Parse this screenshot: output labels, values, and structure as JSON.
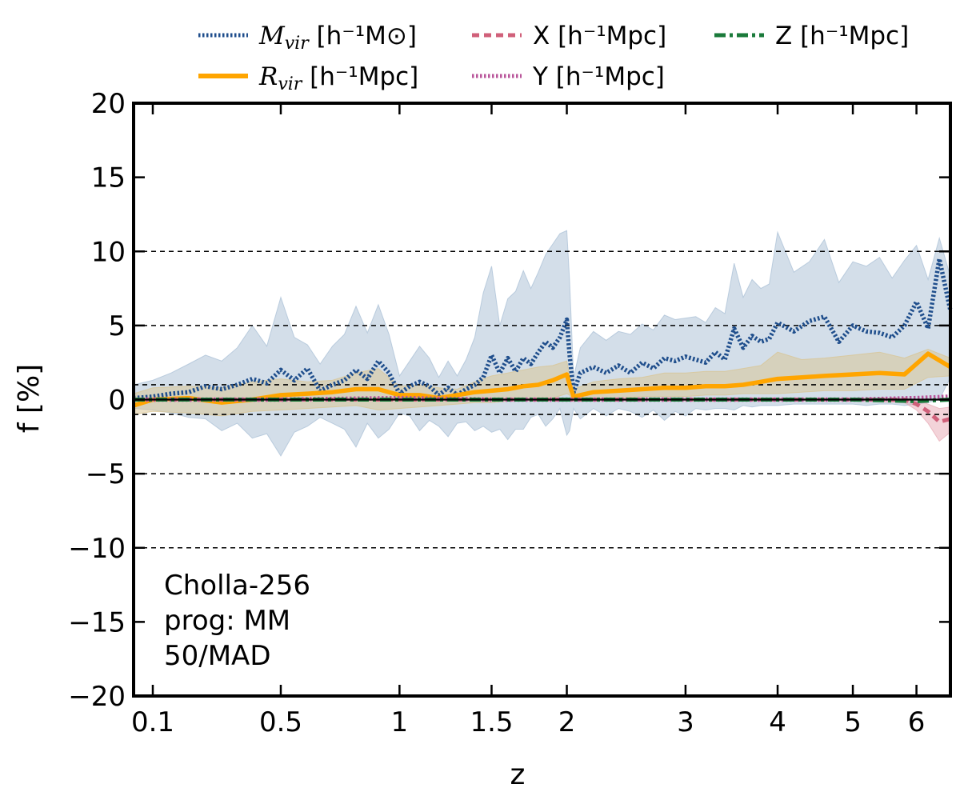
{
  "chart_data": {
    "type": "line",
    "xlabel": "z",
    "ylabel": "f [%]",
    "ylim": [
      -20,
      20
    ],
    "y_ticks": [
      -20,
      -15,
      -10,
      -5,
      0,
      5,
      10,
      15,
      20
    ],
    "y_tick_labels": [
      "−20",
      "−15",
      "−10",
      "−5",
      "0",
      "5",
      "10",
      "15",
      "20"
    ],
    "x_ticks": [
      0.1,
      0.5,
      1,
      1.5,
      2,
      3,
      4,
      5,
      6
    ],
    "x_tick_labels": [
      "0.1",
      "0.5",
      "1",
      "1.5",
      "2",
      "3",
      "4",
      "5",
      "6"
    ],
    "x_scale": "log(1+z)",
    "xlim": [
      0.05,
      6.6
    ],
    "grid": "dashed horizontal lines at y = -10, -5, 5, 10 and y = -1, 1",
    "reference_lines": [
      -10,
      -5,
      -1,
      1,
      5,
      10
    ],
    "legend_position": "top, above plot",
    "annotation": [
      "Cholla-256",
      "prog: MM",
      "50/MAD"
    ],
    "legend": [
      {
        "key": "mvir",
        "math": "M",
        "sub": "vir",
        "units": "[h⁻¹M⊙]",
        "color": "#1f4e8c",
        "style": "dotted"
      },
      {
        "key": "rvir",
        "math": "R",
        "sub": "vir",
        "units": "[h⁻¹Mpc]",
        "color": "#ffa500",
        "style": "solid"
      },
      {
        "key": "x",
        "label": "X",
        "units": "[h⁻¹Mpc]",
        "color": "#d0607a",
        "style": "dashed"
      },
      {
        "key": "y",
        "label": "Y",
        "units": "[h⁻¹Mpc]",
        "color": "#b8559a",
        "style": "dotted"
      },
      {
        "key": "z",
        "label": "Z",
        "units": "[h⁻¹Mpc]",
        "color": "#1a7a3a",
        "style": "dashdot"
      }
    ],
    "series": [
      {
        "name": "M_vir [h^-1 M_sun]",
        "color": "#1f4e8c",
        "style": "dotted",
        "band_color": "#a7bdd4",
        "x": [
          0.05,
          0.1,
          0.15,
          0.2,
          0.25,
          0.3,
          0.35,
          0.4,
          0.45,
          0.5,
          0.55,
          0.6,
          0.65,
          0.7,
          0.75,
          0.8,
          0.85,
          0.9,
          0.95,
          1.0,
          1.05,
          1.1,
          1.15,
          1.2,
          1.25,
          1.3,
          1.35,
          1.4,
          1.45,
          1.5,
          1.55,
          1.6,
          1.65,
          1.7,
          1.75,
          1.8,
          1.85,
          1.9,
          1.95,
          2.0,
          2.02,
          2.05,
          2.1,
          2.2,
          2.3,
          2.4,
          2.5,
          2.6,
          2.7,
          2.8,
          2.9,
          3.0,
          3.1,
          3.2,
          3.3,
          3.4,
          3.5,
          3.6,
          3.7,
          3.8,
          3.9,
          4.0,
          4.2,
          4.4,
          4.6,
          4.8,
          5.0,
          5.2,
          5.4,
          5.6,
          5.8,
          6.0,
          6.2,
          6.4,
          6.6
        ],
        "y": [
          0.1,
          0.2,
          0.4,
          0.5,
          0.9,
          0.7,
          1.0,
          1.4,
          1.1,
          2.0,
          1.3,
          2.1,
          0.6,
          1.0,
          1.3,
          2.0,
          1.4,
          2.6,
          1.8,
          0.4,
          0.9,
          1.2,
          0.9,
          0.3,
          0.8,
          0.3,
          0.7,
          1.0,
          1.5,
          3.0,
          1.8,
          2.8,
          1.9,
          2.8,
          2.4,
          3.2,
          3.9,
          3.5,
          4.2,
          5.4,
          3.0,
          0.5,
          1.8,
          2.2,
          1.8,
          2.3,
          1.8,
          2.5,
          2.1,
          2.8,
          2.6,
          2.9,
          2.7,
          2.5,
          3.2,
          2.7,
          4.8,
          3.5,
          4.3,
          3.9,
          4.1,
          5.2,
          4.6,
          5.3,
          5.6,
          3.9,
          5.0,
          4.6,
          4.5,
          4.2,
          5.0,
          6.6,
          4.8,
          9.5,
          6.0
        ],
        "upper": [
          1.0,
          1.3,
          1.8,
          2.4,
          3.0,
          2.6,
          3.5,
          5.0,
          3.6,
          6.9,
          4.2,
          3.7,
          2.4,
          3.6,
          4.4,
          6.3,
          4.5,
          6.4,
          4.4,
          1.6,
          2.6,
          3.6,
          2.8,
          1.5,
          2.6,
          1.6,
          2.7,
          4.2,
          7.2,
          9.0,
          5.0,
          6.8,
          7.3,
          8.7,
          7.5,
          8.6,
          9.8,
          10.5,
          11.2,
          11.4,
          8.0,
          1.5,
          3.5,
          4.6,
          4.0,
          4.6,
          4.4,
          5.1,
          4.7,
          5.7,
          5.4,
          5.5,
          5.6,
          5.2,
          6.2,
          5.8,
          9.2,
          6.9,
          8.1,
          7.5,
          7.8,
          11.3,
          8.6,
          9.3,
          10.8,
          7.9,
          9.3,
          9.0,
          9.6,
          8.2,
          9.4,
          10.4,
          8.1,
          10.9,
          8.3
        ],
        "lower": [
          -0.6,
          -0.7,
          -0.9,
          -1.2,
          -1.3,
          -2.1,
          -1.6,
          -2.6,
          -2.3,
          -3.8,
          -2.2,
          -1.8,
          -1.2,
          -1.6,
          -2.0,
          -3.2,
          -1.6,
          -2.6,
          -2.0,
          -0.9,
          -1.1,
          -2.1,
          -1.4,
          -1.8,
          -2.5,
          -1.6,
          -1.5,
          -2.1,
          -1.8,
          -2.2,
          -2.0,
          -2.7,
          -2.0,
          -2.0,
          -1.2,
          -1.0,
          -1.8,
          -1.3,
          -0.6,
          -2.4,
          -2.1,
          -0.6,
          -1.3,
          -0.6,
          -1.1,
          -0.6,
          -0.8,
          -1.2,
          -0.7,
          -1.4,
          -0.8,
          -1.1,
          -0.6,
          -0.7,
          -0.6,
          -0.6,
          -0.7,
          -0.4,
          -0.5,
          -0.4,
          -0.4,
          -0.4,
          -0.3,
          -0.3,
          -0.3,
          -0.3,
          -0.3,
          -0.4,
          -0.3,
          -0.3,
          -0.4,
          -0.3,
          -0.2,
          0.0,
          1.5
        ]
      },
      {
        "name": "R_vir [h^-1 Mpc]",
        "color": "#ffa500",
        "style": "solid",
        "band_color": "#d9c38f",
        "x": [
          0.05,
          0.1,
          0.2,
          0.3,
          0.4,
          0.5,
          0.6,
          0.7,
          0.8,
          0.9,
          1.0,
          1.1,
          1.2,
          1.3,
          1.4,
          1.5,
          1.6,
          1.7,
          1.8,
          1.9,
          2.0,
          2.02,
          2.05,
          2.2,
          2.4,
          2.6,
          2.8,
          3.0,
          3.2,
          3.4,
          3.6,
          3.8,
          4.0,
          4.3,
          4.6,
          5.0,
          5.4,
          5.8,
          6.2,
          6.6
        ],
        "y": [
          -0.4,
          0.0,
          0.1,
          -0.2,
          0.0,
          0.3,
          0.4,
          0.5,
          0.7,
          0.7,
          0.3,
          0.3,
          0.1,
          0.3,
          0.5,
          0.6,
          0.7,
          0.9,
          1.0,
          1.3,
          1.7,
          1.0,
          0.2,
          0.5,
          0.6,
          0.7,
          0.8,
          0.8,
          0.9,
          0.9,
          1.0,
          1.2,
          1.4,
          1.5,
          1.6,
          1.7,
          1.8,
          1.7,
          3.1,
          2.2
        ],
        "upper": [
          0.4,
          0.8,
          0.9,
          0.8,
          1.2,
          1.4,
          1.2,
          1.3,
          1.8,
          2.1,
          0.9,
          1.0,
          0.8,
          0.7,
          1.2,
          1.6,
          1.8,
          2.0,
          2.2,
          2.3,
          2.6,
          1.6,
          0.7,
          1.2,
          1.4,
          1.5,
          1.8,
          1.8,
          1.9,
          1.9,
          2.1,
          2.3,
          3.2,
          2.7,
          2.8,
          3.0,
          3.2,
          2.8,
          3.4,
          2.8
        ],
        "lower": [
          -1.0,
          -0.8,
          -0.9,
          -1.1,
          -0.8,
          -0.7,
          -0.6,
          -0.5,
          -0.4,
          -0.7,
          -0.6,
          -0.5,
          -0.4,
          -0.3,
          -0.2,
          -0.2,
          -0.1,
          0.0,
          0.0,
          0.1,
          0.4,
          0.3,
          -0.1,
          0.1,
          0.1,
          0.2,
          0.2,
          0.2,
          0.3,
          0.3,
          0.4,
          0.4,
          0.4,
          0.5,
          0.6,
          0.6,
          0.7,
          0.7,
          1.5,
          1.6
        ]
      },
      {
        "name": "X [h^-1 Mpc]",
        "color": "#d0607a",
        "style": "dashed",
        "band_color": "#e7a8b4",
        "x": [
          0.05,
          0.5,
          1.0,
          1.5,
          2.0,
          2.5,
          3.0,
          4.0,
          5.0,
          5.8,
          6.0,
          6.2,
          6.4,
          6.6
        ],
        "y": [
          0.0,
          0.0,
          0.0,
          0.0,
          0.0,
          0.0,
          0.0,
          0.0,
          0.0,
          0.0,
          -0.3,
          -0.8,
          -1.5,
          -1.3
        ],
        "upper": [
          0.1,
          0.1,
          0.1,
          0.1,
          0.1,
          0.1,
          0.1,
          0.1,
          0.1,
          0.1,
          0.0,
          -0.3,
          -0.6,
          -0.5
        ],
        "lower": [
          -0.1,
          -0.1,
          -0.1,
          -0.1,
          -0.1,
          -0.1,
          -0.1,
          -0.1,
          -0.1,
          -0.2,
          -0.7,
          -1.6,
          -2.8,
          -2.2
        ]
      },
      {
        "name": "Y [h^-1 Mpc]",
        "color": "#b8559a",
        "style": "dotted",
        "x": [
          0.05,
          0.5,
          1.0,
          1.5,
          2.0,
          2.5,
          3.0,
          4.0,
          5.0,
          6.0,
          6.6
        ],
        "y": [
          0.0,
          0.0,
          0.1,
          0.0,
          0.0,
          0.0,
          0.0,
          0.0,
          0.0,
          0.1,
          0.2
        ]
      },
      {
        "name": "Z [h^-1 Mpc]",
        "color": "#1a7a3a",
        "style": "dashdot",
        "x": [
          0.05,
          0.5,
          1.0,
          1.5,
          2.0,
          2.5,
          3.0,
          4.0,
          5.0,
          6.0,
          6.6
        ],
        "y": [
          0.0,
          0.0,
          0.0,
          0.0,
          0.0,
          0.0,
          0.0,
          0.0,
          0.0,
          -0.1,
          0.0
        ]
      }
    ]
  }
}
